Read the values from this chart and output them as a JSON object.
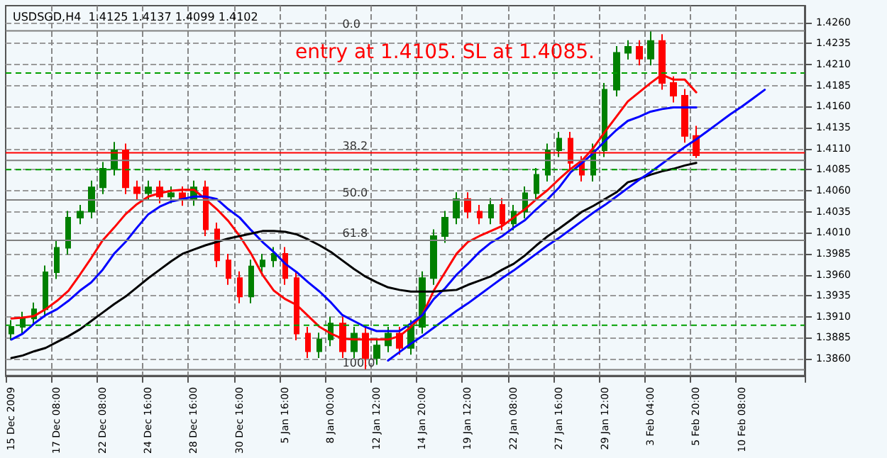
{
  "chart_data": {
    "type": "candlestick",
    "title": "USDSGD,H4  1.4125 1.4137 1.4099 1.4102",
    "annotations": [
      "entry at 1.4105. SL at 1.4085.",
      "0.0",
      "38.2",
      "50.0",
      "61.8",
      "100.0"
    ],
    "categories": [
      "15 Dec 2009",
      null,
      null,
      null,
      "17 Dec 08:00",
      null,
      null,
      null,
      "22 Dec 08:00",
      null,
      null,
      null,
      "24 Dec 16:00",
      null,
      null,
      null,
      "28 Dec 16:00",
      null,
      null,
      null,
      "30 Dec 16:00",
      null,
      null,
      null,
      "5 Jan 16:00",
      null,
      null,
      null,
      "8 Jan 00:00",
      null,
      null,
      null,
      "12 Jan 12:00",
      null,
      null,
      null,
      "14 Jan 20:00",
      null,
      null,
      null,
      "19 Jan 12:00",
      null,
      null,
      null,
      "22 Jan 08:00",
      null,
      null,
      null,
      "27 Jan 16:00",
      null,
      null,
      null,
      "29 Jan 12:00",
      null,
      null,
      null,
      "3 Feb 04:00",
      null,
      null,
      null,
      "5 Feb 20:00",
      null,
      null,
      null,
      "10 Feb 08:00",
      null,
      null,
      null,
      null,
      null
    ],
    "series": [
      {
        "type": "candlestick",
        "ohlc": [
          [
            1.389,
            1.3906,
            1.3882,
            1.3898
          ],
          [
            1.3898,
            1.3916,
            1.389,
            1.3908
          ],
          [
            1.3908,
            1.3927,
            1.39,
            1.3919
          ],
          [
            1.3919,
            1.3971,
            1.3911,
            1.3963
          ],
          [
            1.3963,
            1.4,
            1.3955,
            1.3992
          ],
          [
            1.3992,
            1.4036,
            1.3984,
            1.4028
          ],
          [
            1.4028,
            1.4043,
            1.402,
            1.4035
          ],
          [
            1.4035,
            1.4072,
            1.4027,
            1.4064
          ],
          [
            1.4064,
            1.4094,
            1.4056,
            1.4086
          ],
          [
            1.4086,
            1.4118,
            1.4078,
            1.4108
          ],
          [
            1.4108,
            1.4116,
            1.4056,
            1.4064
          ],
          [
            1.4064,
            1.4072,
            1.4049,
            1.4057
          ],
          [
            1.4057,
            1.4072,
            1.4049,
            1.4064
          ],
          [
            1.4064,
            1.4072,
            1.4045,
            1.4053
          ],
          [
            1.4053,
            1.4065,
            1.4045,
            1.4057
          ],
          [
            1.4057,
            1.4065,
            1.4042,
            1.405
          ],
          [
            1.405,
            1.4072,
            1.4042,
            1.4064
          ],
          [
            1.4064,
            1.4072,
            1.4006,
            1.4014
          ],
          [
            1.4014,
            1.4022,
            1.3969,
            1.3977
          ],
          [
            1.3977,
            1.3985,
            1.3948,
            1.3956
          ],
          [
            1.3956,
            1.3964,
            1.3926,
            1.3934
          ],
          [
            1.3934,
            1.3978,
            1.3926,
            1.397
          ],
          [
            1.397,
            1.3985,
            1.3962,
            1.3977
          ],
          [
            1.3977,
            1.3993,
            1.3969,
            1.3985
          ],
          [
            1.3985,
            1.3993,
            1.3948,
            1.3956
          ],
          [
            1.3956,
            1.3964,
            1.3882,
            1.389
          ],
          [
            1.389,
            1.3898,
            1.3861,
            1.3869
          ],
          [
            1.3869,
            1.3891,
            1.3861,
            1.3883
          ],
          [
            1.3883,
            1.391,
            1.3875,
            1.3902
          ],
          [
            1.3902,
            1.391,
            1.3861,
            1.3869
          ],
          [
            1.3869,
            1.3898,
            1.3861,
            1.389
          ],
          [
            1.389,
            1.3898,
            1.3847,
            1.3861
          ],
          [
            1.3861,
            1.3884,
            1.3853,
            1.3876
          ],
          [
            1.3876,
            1.3898,
            1.3868,
            1.389
          ],
          [
            1.389,
            1.3898,
            1.3865,
            1.3873
          ],
          [
            1.3873,
            1.3906,
            1.3865,
            1.3898
          ],
          [
            1.3898,
            1.3964,
            1.389,
            1.3956
          ],
          [
            1.3956,
            1.4014,
            1.3948,
            1.4006
          ],
          [
            1.4006,
            1.4036,
            1.3998,
            1.4028
          ],
          [
            1.4028,
            1.4058,
            1.402,
            1.405
          ],
          [
            1.405,
            1.4058,
            1.4027,
            1.4035
          ],
          [
            1.4035,
            1.4043,
            1.402,
            1.4028
          ],
          [
            1.4028,
            1.4051,
            1.402,
            1.4043
          ],
          [
            1.4043,
            1.4051,
            1.4013,
            1.4021
          ],
          [
            1.4021,
            1.4043,
            1.4013,
            1.4035
          ],
          [
            1.4035,
            1.4065,
            1.4027,
            1.4057
          ],
          [
            1.4057,
            1.4087,
            1.4049,
            1.4079
          ],
          [
            1.4079,
            1.4116,
            1.4071,
            1.4108
          ],
          [
            1.4108,
            1.413,
            1.41,
            1.4122
          ],
          [
            1.4122,
            1.413,
            1.4085,
            1.4093
          ],
          [
            1.4093,
            1.4101,
            1.4071,
            1.4079
          ],
          [
            1.4079,
            1.4116,
            1.4071,
            1.4108
          ],
          [
            1.4108,
            1.4188,
            1.41,
            1.418
          ],
          [
            1.418,
            1.4232,
            1.4172,
            1.4224
          ],
          [
            1.4224,
            1.4239,
            1.4216,
            1.4231
          ],
          [
            1.4231,
            1.4239,
            1.4209,
            1.4217
          ],
          [
            1.4217,
            1.425,
            1.4209,
            1.4238
          ],
          [
            1.4238,
            1.4246,
            1.418,
            1.4188
          ],
          [
            1.4188,
            1.4196,
            1.4165,
            1.4173
          ],
          [
            1.4173,
            1.4181,
            1.4117,
            1.4125
          ],
          [
            1.4125,
            1.4137,
            1.4099,
            1.4102
          ],
          null,
          null,
          null,
          null,
          null,
          null,
          null,
          null,
          null
        ],
        "colors": [
          "#008000",
          "#008000",
          "#008000",
          "#008000",
          "#008000",
          "#008000",
          "#008000",
          "#008000",
          "#008000",
          "#008000",
          "#ff0000",
          "#ff0000",
          "#008000",
          "#ff0000",
          "#008000",
          "#ff0000",
          "#008000",
          "#ff0000",
          "#ff0000",
          "#ff0000",
          "#ff0000",
          "#008000",
          "#008000",
          "#008000",
          "#ff0000",
          "#ff0000",
          "#ff0000",
          "#008000",
          "#008000",
          "#ff0000",
          "#008000",
          "#ff0000",
          "#008000",
          "#008000",
          "#ff0000",
          "#008000",
          "#008000",
          "#008000",
          "#008000",
          "#008000",
          "#ff0000",
          "#ff0000",
          "#008000",
          "#ff0000",
          "#008000",
          "#008000",
          "#008000",
          "#008000",
          "#008000",
          "#ff0000",
          "#ff0000",
          "#008000",
          "#008000",
          "#008000",
          "#008000",
          "#ff0000",
          "#008000",
          "#ff0000",
          "#ff0000",
          "#ff0000",
          "#ff0000",
          null,
          null,
          null,
          null,
          null,
          null,
          null,
          null,
          null
        ]
      },
      {
        "type": "line",
        "color": "#ff0000",
        "values": [
          1.3908,
          1.3909,
          1.3911,
          1.3919,
          1.3929,
          1.3941,
          1.396,
          1.398,
          1.4001,
          1.4016,
          1.4032,
          1.4044,
          1.4053,
          1.4057,
          1.406,
          1.4061,
          1.4061,
          1.405,
          1.4038,
          1.4024,
          1.4006,
          1.3985,
          1.396,
          1.3941,
          1.3931,
          1.3924,
          1.3911,
          1.3898,
          1.389,
          1.3884,
          1.3883,
          1.3883,
          1.3883,
          1.3883,
          1.3887,
          1.3898,
          1.3912,
          1.3941,
          1.3963,
          1.3985,
          1.3999,
          1.4006,
          1.4012,
          1.4018,
          1.4028,
          1.4038,
          1.405,
          1.4061,
          1.4074,
          1.4086,
          1.4096,
          1.4111,
          1.413,
          1.4148,
          1.4166,
          1.4177,
          1.4188,
          1.4198,
          1.4192,
          1.4192,
          1.4177,
          null,
          null,
          null,
          null,
          null,
          null,
          null,
          null,
          null
        ]
      },
      {
        "type": "line",
        "color": "#0000ff",
        "values": [
          1.3883,
          1.389,
          1.3902,
          1.3912,
          1.3919,
          1.3929,
          1.3941,
          1.3951,
          1.3966,
          1.3985,
          1.3999,
          1.4016,
          1.4032,
          1.4041,
          1.4047,
          1.405,
          1.4053,
          1.4053,
          1.405,
          1.4038,
          1.4028,
          1.4013,
          1.3999,
          1.3987,
          1.3973,
          1.3963,
          1.3951,
          1.394,
          1.3927,
          1.3912,
          1.3905,
          1.3898,
          1.3893,
          1.3893,
          1.3893,
          1.3902,
          1.3912,
          1.3931,
          1.3944,
          1.396,
          1.3973,
          1.3987,
          1.3998,
          1.4006,
          1.4016,
          1.4025,
          1.4038,
          1.405,
          1.4064,
          1.4082,
          1.4093,
          1.4105,
          1.4119,
          1.4132,
          1.4143,
          1.4148,
          1.4154,
          1.4157,
          1.4159,
          1.4159,
          1.4159,
          null,
          null,
          null,
          null,
          null,
          null,
          null,
          null,
          null
        ]
      },
      {
        "type": "line",
        "color": "#000000",
        "values": [
          1.3861,
          1.3864,
          1.3869,
          1.3873,
          1.388,
          1.3887,
          1.3895,
          1.3905,
          1.3915,
          1.3925,
          1.3934,
          1.3945,
          1.3956,
          1.3966,
          1.3976,
          1.3985,
          1.399,
          1.3995,
          1.3999,
          1.4003,
          1.4006,
          1.4009,
          1.4012,
          1.4012,
          1.4011,
          1.4008,
          1.4002,
          1.3995,
          1.3987,
          1.3977,
          1.3967,
          1.3958,
          1.3951,
          1.3945,
          1.3942,
          1.394,
          1.394,
          1.394,
          1.3941,
          1.3942,
          1.3948,
          1.3953,
          1.3958,
          1.3966,
          1.3973,
          1.3983,
          1.3995,
          1.4006,
          1.4015,
          1.4025,
          1.4035,
          1.4042,
          1.405,
          1.4058,
          1.407,
          1.4074,
          1.4079,
          1.4083,
          1.4086,
          1.409,
          1.4093,
          null,
          null,
          null,
          null,
          null,
          null,
          null,
          null,
          null
        ]
      },
      {
        "type": "line",
        "color": "#0000ff",
        "values": [
          null,
          null,
          null,
          null,
          null,
          null,
          null,
          null,
          null,
          null,
          null,
          null,
          null,
          null,
          null,
          null,
          null,
          null,
          null,
          null,
          null,
          null,
          null,
          null,
          null,
          null,
          null,
          null,
          null,
          null,
          null,
          null,
          null,
          1.3858,
          1.3868,
          1.3878,
          1.3887,
          1.3897,
          1.3907,
          1.3917,
          1.3926,
          1.3936,
          1.3946,
          1.3956,
          1.3965,
          1.3975,
          1.3985,
          1.3995,
          1.4004,
          1.4014,
          1.4024,
          1.4034,
          1.4043,
          1.4053,
          1.4063,
          1.4073,
          1.4082,
          1.4092,
          1.4102,
          1.4112,
          1.4121,
          1.4131,
          1.4141,
          1.4151,
          1.416,
          1.417,
          1.418,
          null,
          null,
          null
        ]
      }
    ],
    "ylim": [
      1.384,
      1.428
    ],
    "yticks": [
      {
        "value": 1.386,
        "label": "1.3860"
      },
      {
        "value": 1.3885,
        "label": "1.3885"
      },
      {
        "value": 1.391,
        "label": "1.3910"
      },
      {
        "value": 1.3935,
        "label": "1.3935"
      },
      {
        "value": 1.396,
        "label": "1.3960"
      },
      {
        "value": 1.3985,
        "label": "1.3985"
      },
      {
        "value": 1.401,
        "label": "1.4010"
      },
      {
        "value": 1.4035,
        "label": "1.4035"
      },
      {
        "value": 1.406,
        "label": "1.4060"
      },
      {
        "value": 1.4085,
        "label": "1.4085"
      },
      {
        "value": 1.411,
        "label": "1.4110"
      },
      {
        "value": 1.4135,
        "label": "1.4135"
      },
      {
        "value": 1.416,
        "label": "1.4160"
      },
      {
        "value": 1.4185,
        "label": "1.4185"
      },
      {
        "value": 1.421,
        "label": "1.4210"
      },
      {
        "value": 1.4235,
        "label": "1.4235"
      },
      {
        "value": 1.426,
        "label": "1.4260"
      }
    ],
    "ref_lines": [
      {
        "axis": "y",
        "value": 1.425,
        "label": null,
        "color": "#808080"
      },
      {
        "axis": "y",
        "value": 1.4096,
        "label": null,
        "color": "#808080"
      },
      {
        "axis": "y",
        "value": 1.4049,
        "label": null,
        "color": "#808080"
      },
      {
        "axis": "y",
        "value": 1.4001,
        "label": null,
        "color": "#808080"
      },
      {
        "axis": "y",
        "value": 1.3847,
        "label": null,
        "color": "#808080"
      },
      {
        "axis": "y",
        "value": 1.4105,
        "label": null,
        "color": "#ff0000"
      },
      {
        "axis": "y",
        "value": 1.4085,
        "label": null,
        "color": "#00a000",
        "line_style": "dashed"
      },
      {
        "axis": "y",
        "value": 1.42,
        "label": null,
        "color": "#00a000",
        "line_style": "dashed"
      },
      {
        "axis": "y",
        "value": 1.39,
        "label": null,
        "color": "#00a000",
        "line_style": "dashed"
      }
    ],
    "grid": true
  }
}
